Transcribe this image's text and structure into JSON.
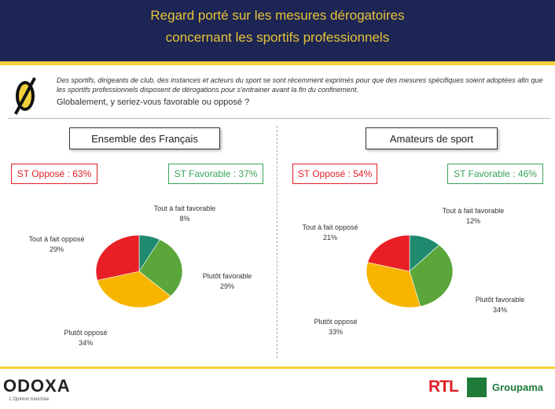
{
  "header": {
    "title_line1": "Regard porté sur les mesures dérogatoires",
    "title_line2": "concernant les sportifs professionnels",
    "bg_color": "#1c2553",
    "text_color": "#e8c33a"
  },
  "intro": {
    "text": "Des sportifs, dirigeants de club, des instances et acteurs du sport se sont récemment exprimés pour que des mesures spécifiques soient adoptées afin que les sportifs professionnels disposent de dérogations pour s'entrainer avant la fin du confinement.",
    "question": "Globalement, y seriez-vous favorable ou opposé ?"
  },
  "panels": [
    {
      "title": "Ensemble des Français",
      "st_oppose": "ST Opposé : 63%",
      "st_favorable": "ST Favorable : 37%"
    },
    {
      "title": "Amateurs de sport",
      "st_oppose": "ST Opposé : 54%",
      "st_favorable": "ST Favorable : 46%"
    }
  ],
  "chart_data": [
    {
      "type": "pie",
      "slices": [
        {
          "label": "Tout à fait favorable",
          "value": 8,
          "display": "8%",
          "color": "#1f8a70"
        },
        {
          "label": "Plutôt favorable",
          "value": 29,
          "display": "29%",
          "color": "#5aa63a"
        },
        {
          "label": "Plutôt opposé",
          "value": 34,
          "display": "34%",
          "color": "#f7b500"
        },
        {
          "label": "Tout à fait opposé",
          "value": 29,
          "display": "29%",
          "color": "#e81f25"
        }
      ]
    },
    {
      "type": "pie",
      "slices": [
        {
          "label": "Tout à fait favorable",
          "value": 12,
          "display": "12%",
          "color": "#1f8a70"
        },
        {
          "label": "Plutôt favorable",
          "value": 34,
          "display": "34%",
          "color": "#5aa63a"
        },
        {
          "label": "Plutôt opposé",
          "value": 33,
          "display": "33%",
          "color": "#f7b500"
        },
        {
          "label": "Tout à fait opposé",
          "value": 21,
          "display": "21%",
          "color": "#e81f25"
        }
      ]
    }
  ],
  "footer": {
    "brand": "ODOXA",
    "tagline": "L'Opinion tranchée",
    "partner1": "RTL",
    "partner2": "Groupama"
  }
}
